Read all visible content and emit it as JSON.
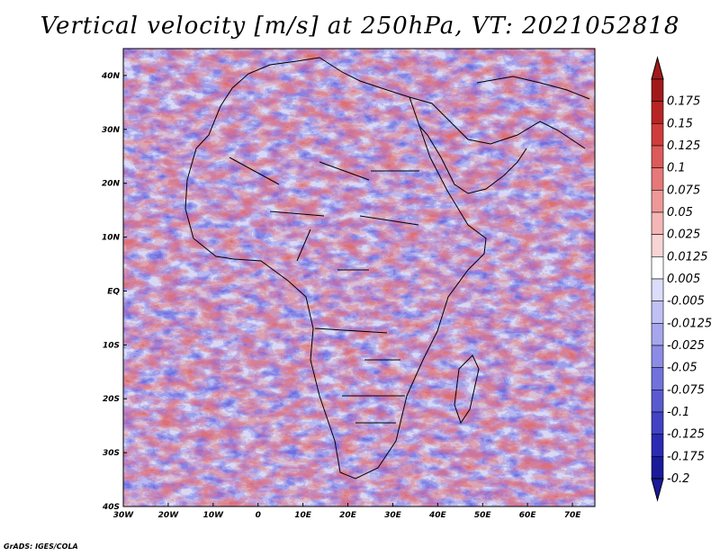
{
  "title": "Vertical velocity [m/s] at 250hPa, VT: 2021052818",
  "credit": "GrADS: IGES/COLA",
  "map": {
    "lon_range": [
      -30,
      75
    ],
    "lat_range": [
      -40,
      45
    ],
    "lon_ticks": [
      "30W",
      "20W",
      "10W",
      "0",
      "10E",
      "20E",
      "30E",
      "40E",
      "50E",
      "60E",
      "70E"
    ],
    "lat_ticks": [
      "40N",
      "30N",
      "20N",
      "10N",
      "EQ",
      "10S",
      "20S",
      "30S",
      "40S"
    ],
    "coastline_color": "#000000"
  },
  "colorbar": {
    "labels": [
      "0.175",
      "0.15",
      "0.125",
      "0.1",
      "0.075",
      "0.05",
      "0.025",
      "0.0125",
      "0.005",
      "-0.005",
      "-0.0125",
      "-0.025",
      "-0.05",
      "-0.075",
      "-0.1",
      "-0.125",
      "-0.175",
      "-0.2"
    ],
    "colors": [
      "#a11a1a",
      "#b82424",
      "#cf3c3c",
      "#dd5a5a",
      "#e67878",
      "#ee9898",
      "#f4b6b6",
      "#f9d4d4",
      "#ffffff",
      "#dcdcfb",
      "#c0c0f4",
      "#a6a6ee",
      "#8c8ce6",
      "#7272dc",
      "#5a5ad0",
      "#4242c4",
      "#2a2ab4",
      "#1a1a9a"
    ],
    "top_arrow_color": "#a11a1a",
    "bottom_arrow_color": "#1a1a9a"
  }
}
